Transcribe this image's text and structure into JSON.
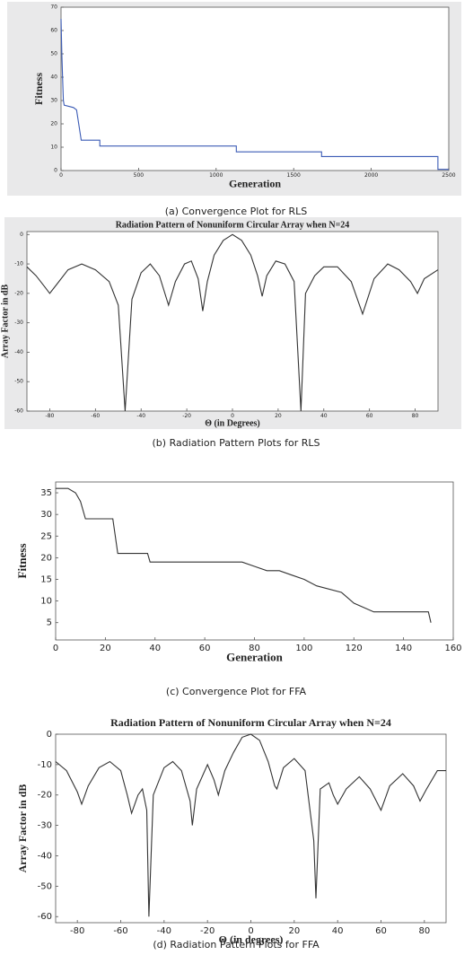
{
  "chart_data": [
    {
      "type": "line",
      "caption": "(a) Convergence Plot for RLS",
      "xlabel": "Generation",
      "ylabel": "Fitness",
      "color": "#3b5bb5",
      "x": [
        0,
        5,
        10,
        15,
        20,
        80,
        100,
        130,
        250,
        250,
        1130,
        1130,
        1680,
        1680,
        2430,
        2430,
        2500
      ],
      "values": [
        65,
        50,
        40,
        30,
        28,
        27,
        26,
        13,
        13,
        10.5,
        10.5,
        8,
        8,
        6,
        6,
        0.5,
        0.5
      ],
      "xlim": [
        0,
        2500
      ],
      "ylim": [
        0,
        70
      ],
      "xticks": [
        0,
        500,
        1000,
        1500,
        2000,
        2500
      ],
      "yticks": [
        0,
        10,
        20,
        30,
        40,
        50,
        60,
        70
      ]
    },
    {
      "type": "line",
      "title": "Radiation Pattern of Nonuniform Circular Array when N=24",
      "caption": "(b) Radiation Pattern Plots for RLS",
      "xlabel": "Θ (in Degrees)",
      "ylabel": "Array Factor in dB",
      "color": "#333333",
      "x": [
        -90,
        -86,
        -82,
        -80,
        -77,
        -72,
        -66,
        -60,
        -54,
        -50,
        -47,
        -44,
        -40,
        -36,
        -32,
        -28,
        -25,
        -21,
        -18,
        -15,
        -13,
        -11,
        -8,
        -4,
        0,
        4,
        8,
        11,
        13,
        15,
        19,
        23,
        27,
        30,
        32,
        36,
        40,
        46,
        52,
        57,
        62,
        68,
        73,
        78,
        81,
        84,
        90
      ],
      "values": [
        -11,
        -14,
        -18,
        -20,
        -17,
        -12,
        -10,
        -12,
        -16,
        -24,
        -60,
        -22,
        -13,
        -10,
        -14,
        -24,
        -16,
        -10,
        -9,
        -15,
        -26,
        -16,
        -7,
        -2,
        0,
        -2,
        -7,
        -14,
        -21,
        -14,
        -9,
        -10,
        -16,
        -60,
        -20,
        -14,
        -11,
        -11,
        -16,
        -27,
        -15,
        -10,
        -12,
        -16,
        -20,
        -15,
        -12
      ],
      "xlim": [
        -90,
        90
      ],
      "ylim": [
        -60,
        1
      ],
      "xticks": [
        -80,
        -60,
        -40,
        -20,
        0,
        20,
        40,
        60,
        80
      ],
      "yticks": [
        0,
        -10,
        -20,
        -30,
        -40,
        -50,
        -60
      ]
    },
    {
      "type": "line",
      "caption": "(c) Convergence Plot for FFA",
      "xlabel": "Generation",
      "ylabel": "Fitness",
      "color": "#333333",
      "x": [
        0,
        5,
        8,
        10,
        12,
        23,
        25,
        37,
        38,
        75,
        80,
        85,
        90,
        95,
        100,
        105,
        115,
        120,
        128,
        150,
        151
      ],
      "values": [
        36,
        36,
        35,
        33,
        29,
        29,
        21,
        21,
        19,
        19,
        18,
        17,
        17,
        16,
        15,
        13.5,
        12,
        9.5,
        7.5,
        7.5,
        5
      ],
      "xlim": [
        0,
        160
      ],
      "ylim": [
        1,
        37.5
      ],
      "xticks": [
        0,
        20,
        40,
        60,
        80,
        100,
        120,
        140,
        160
      ],
      "yticks": [
        5,
        10,
        15,
        20,
        25,
        30,
        35
      ]
    },
    {
      "type": "line",
      "title": "Radiation Pattern of Nonuniform Circular Array when N=24",
      "caption": "(d) Radiation Pattern Plots for FFA",
      "xlabel": "Θ (in degrees)",
      "ylabel": "Array Factor in dB",
      "color": "#333333",
      "x": [
        -90,
        -85,
        -80,
        -78,
        -75,
        -70,
        -65,
        -60,
        -57,
        -55,
        -52,
        -50,
        -48,
        -47,
        -45,
        -40,
        -36,
        -32,
        -28,
        -27,
        -25,
        -20,
        -17,
        -15,
        -12,
        -8,
        -4,
        0,
        4,
        8,
        11,
        12,
        15,
        20,
        25,
        29,
        30,
        32,
        36,
        38,
        40,
        44,
        50,
        55,
        60,
        64,
        70,
        75,
        78,
        81,
        86,
        90
      ],
      "values": [
        -9,
        -12,
        -19,
        -23,
        -17,
        -11,
        -9,
        -12,
        -20,
        -26,
        -20,
        -18,
        -25,
        -60,
        -20,
        -11,
        -9,
        -12,
        -22,
        -30,
        -18,
        -10,
        -15,
        -20,
        -12,
        -6,
        -1,
        0,
        -2,
        -9,
        -17,
        -18,
        -11,
        -8,
        -12,
        -35,
        -54,
        -18,
        -16,
        -20,
        -23,
        -18,
        -14,
        -18,
        -25,
        -17,
        -13,
        -17,
        -22,
        -18,
        -12,
        -12
      ],
      "xlim": [
        -90,
        90
      ],
      "ylim": [
        -62,
        0
      ],
      "xticks": [
        -80,
        -60,
        -40,
        -20,
        0,
        20,
        40,
        60,
        80
      ],
      "yticks": [
        0,
        -10,
        -20,
        -30,
        -40,
        -50,
        -60
      ]
    }
  ]
}
